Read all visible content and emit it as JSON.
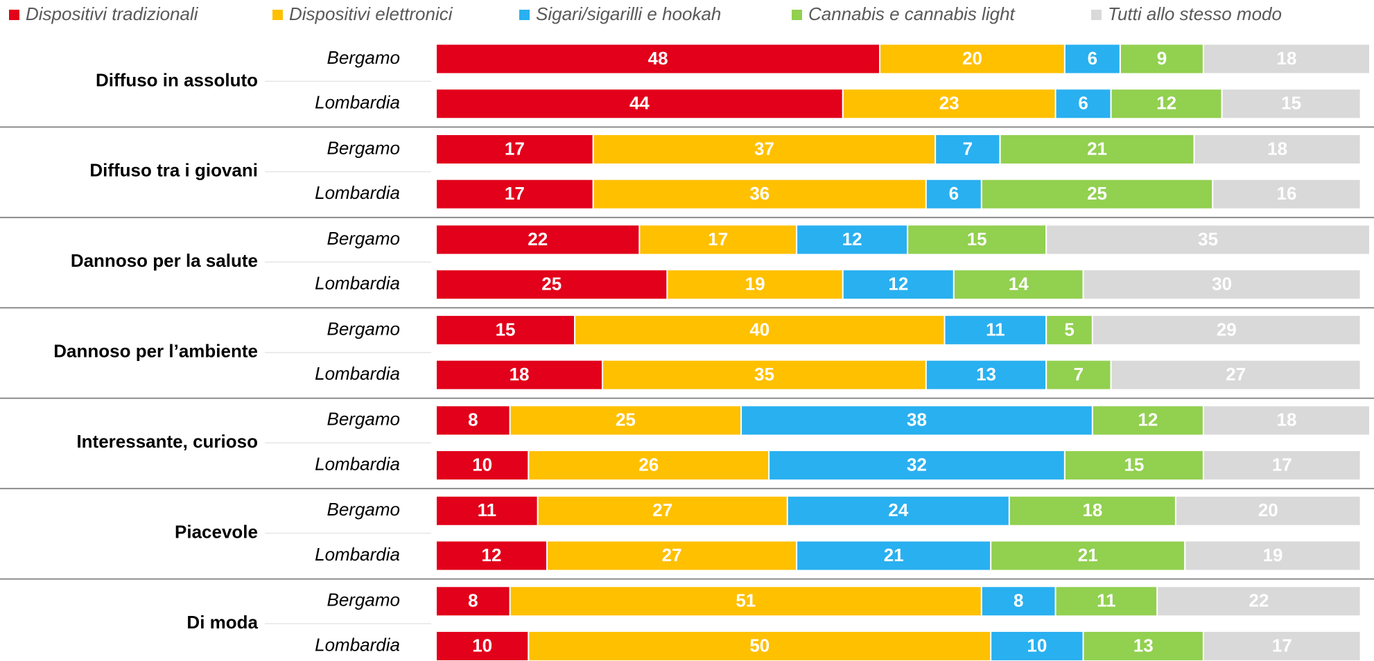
{
  "chart_data": {
    "type": "stacked-bar-horizontal",
    "categories": [
      "Diffuso in assoluto",
      "Diffuso tra i giovani",
      "Dannoso per la salute",
      "Dannoso per l’ambiente",
      "Interessante, curioso",
      "Piacevole",
      "Di moda"
    ],
    "subcategories": [
      "Bergamo",
      "Lombardia"
    ],
    "series": [
      {
        "name": "Dispositivi tradizionali",
        "color": "#e2001a",
        "values": [
          [
            48,
            44
          ],
          [
            17,
            17
          ],
          [
            22,
            25
          ],
          [
            15,
            18
          ],
          [
            8,
            10
          ],
          [
            11,
            12
          ],
          [
            8,
            10
          ]
        ]
      },
      {
        "name": "Dispositivi elettronici",
        "color": "#ffc000",
        "values": [
          [
            20,
            23
          ],
          [
            37,
            36
          ],
          [
            17,
            19
          ],
          [
            40,
            35
          ],
          [
            25,
            26
          ],
          [
            27,
            27
          ],
          [
            51,
            50
          ]
        ]
      },
      {
        "name": "Sigari/sigarilli e hookah",
        "color": "#29b0f0",
        "values": [
          [
            6,
            6
          ],
          [
            7,
            6
          ],
          [
            12,
            12
          ],
          [
            11,
            13
          ],
          [
            38,
            32
          ],
          [
            24,
            21
          ],
          [
            8,
            10
          ]
        ]
      },
      {
        "name": "Cannabis e cannabis light",
        "color": "#92d050",
        "values": [
          [
            9,
            12
          ],
          [
            21,
            25
          ],
          [
            15,
            14
          ],
          [
            5,
            7
          ],
          [
            12,
            15
          ],
          [
            18,
            21
          ],
          [
            11,
            13
          ]
        ]
      },
      {
        "name": "Tutti allo stesso modo",
        "color": "#d9d9d9",
        "values": [
          [
            18,
            15
          ],
          [
            18,
            16
          ],
          [
            35,
            30
          ],
          [
            29,
            27
          ],
          [
            18,
            17
          ],
          [
            20,
            19
          ],
          [
            22,
            17
          ]
        ]
      }
    ],
    "legend": "top"
  }
}
